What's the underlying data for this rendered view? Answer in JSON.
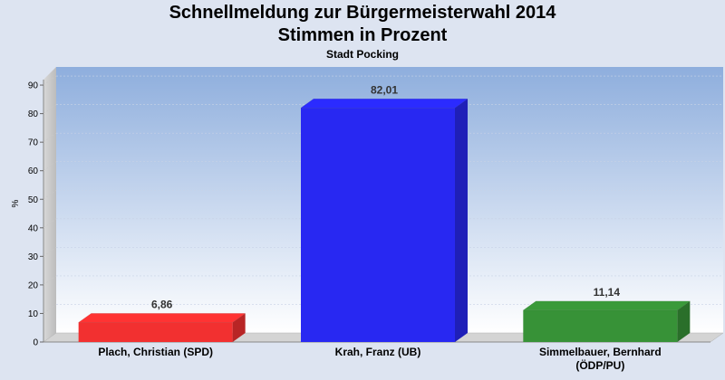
{
  "chart_data": {
    "type": "bar",
    "title": "Schnellmeldung zur Bürgermeisterwahl 2014",
    "subtitle": "Stimmen in Prozent",
    "caption": "Stadt Pocking",
    "ylabel": "%",
    "ylim": [
      0,
      95
    ],
    "yticks": [
      0,
      10,
      20,
      30,
      40,
      50,
      60,
      70,
      80,
      90
    ],
    "grid": true,
    "categories": [
      [
        "Plach, Christian (SPD)"
      ],
      [
        "Krah, Franz (UB)"
      ],
      [
        "Simmelbauer, Bernhard",
        "(ÖDP/PU)"
      ]
    ],
    "values": [
      6.86,
      82.01,
      11.14
    ],
    "value_labels": [
      "6,86",
      "82,01",
      "11,14"
    ],
    "colors": [
      "#ff3333",
      "#2b2bff",
      "#3a9a3a"
    ]
  }
}
